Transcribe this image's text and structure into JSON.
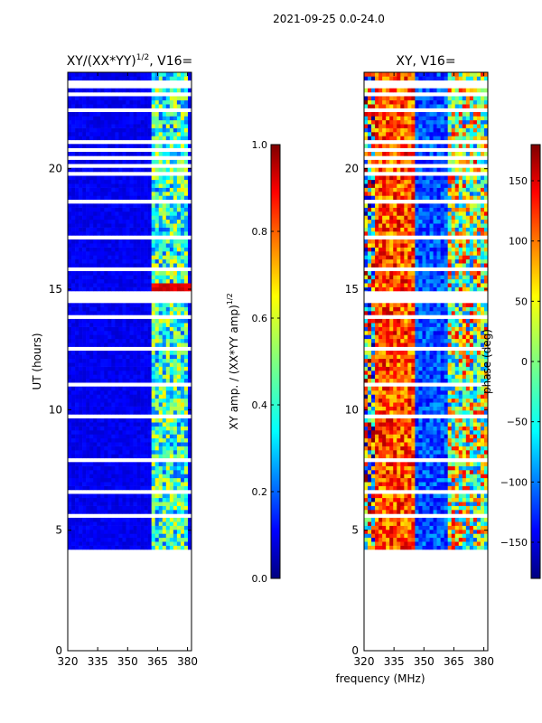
{
  "figure": {
    "suptitle": "2021-09-25 0.0-24.0",
    "shared_xlabel": "frequency (MHz)"
  },
  "chart_data": [
    {
      "type": "heatmap",
      "title_prefix": "XY/(XX*YY)",
      "title_exponent": "1/2",
      "title_suffix": ", V16=",
      "xlabel": "",
      "ylabel": "UT (hours)",
      "xlim": [
        320,
        382
      ],
      "ylim": [
        0,
        24
      ],
      "xticks": [
        320,
        335,
        350,
        365,
        380
      ],
      "yticks": [
        0,
        5,
        10,
        15,
        20
      ],
      "data_start_hour": 4.2,
      "colorbar": {
        "label_prefix": "XY amp. / (XX*YY amp)",
        "label_exponent": "1/2",
        "range": [
          0.0,
          1.0
        ],
        "ticks": [
          0.0,
          0.2,
          0.4,
          0.6,
          0.8,
          1.0
        ],
        "tick_labels": [
          "0.0",
          "0.2",
          "0.4",
          "0.6",
          "0.8",
          "1.0"
        ]
      }
    },
    {
      "type": "heatmap",
      "title_prefix": "XY, V16=",
      "xlabel": "frequency (MHz)",
      "ylabel": "",
      "xlim": [
        320,
        382
      ],
      "ylim": [
        0,
        24
      ],
      "xticks": [
        320,
        335,
        350,
        365,
        380
      ],
      "yticks": [
        0,
        5,
        10,
        15,
        20
      ],
      "data_start_hour": 4.2,
      "colorbar": {
        "label": "phase (deg)",
        "range": [
          -180,
          180
        ],
        "ticks": [
          -150,
          -100,
          -50,
          0,
          50,
          100,
          150
        ],
        "tick_labels": [
          "−150",
          "−100",
          "−50",
          "0",
          "50",
          "100",
          "150"
        ]
      }
    }
  ],
  "colors": {
    "jet": [
      "#00007f",
      "#0000ff",
      "#007fff",
      "#00ffff",
      "#7fff7f",
      "#ffff00",
      "#ff7f00",
      "#ff0000",
      "#7f0000"
    ],
    "gap": "#ffffff"
  }
}
